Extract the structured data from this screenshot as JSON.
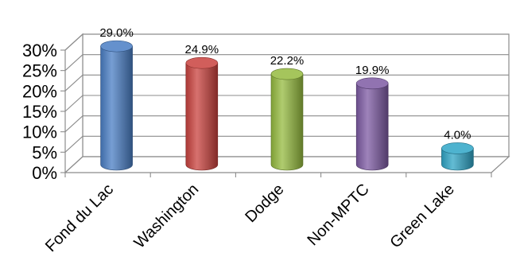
{
  "chart_data": {
    "type": "bar",
    "style": "3d-cylinder",
    "categories": [
      "Fond du Lac",
      "Washington",
      "Dodge",
      "Non-MPTC",
      "Green Lake"
    ],
    "values": [
      29.0,
      24.9,
      22.2,
      19.9,
      4.0
    ],
    "data_labels": [
      "29.0%",
      "24.9%",
      "22.2%",
      "19.9%",
      "4.0%"
    ],
    "colors": [
      "#4a7ec4",
      "#c9423e",
      "#95bb3f",
      "#7d5aa3",
      "#2fa5c6"
    ],
    "title": "",
    "xlabel": "",
    "ylabel": "",
    "ylim": [
      0,
      30
    ],
    "yticks": [
      "0%",
      "5%",
      "10%",
      "15%",
      "20%",
      "25%",
      "30%"
    ],
    "ytick_values": [
      0,
      5,
      10,
      15,
      20,
      25,
      30
    ],
    "grid": true,
    "legend": "none"
  }
}
